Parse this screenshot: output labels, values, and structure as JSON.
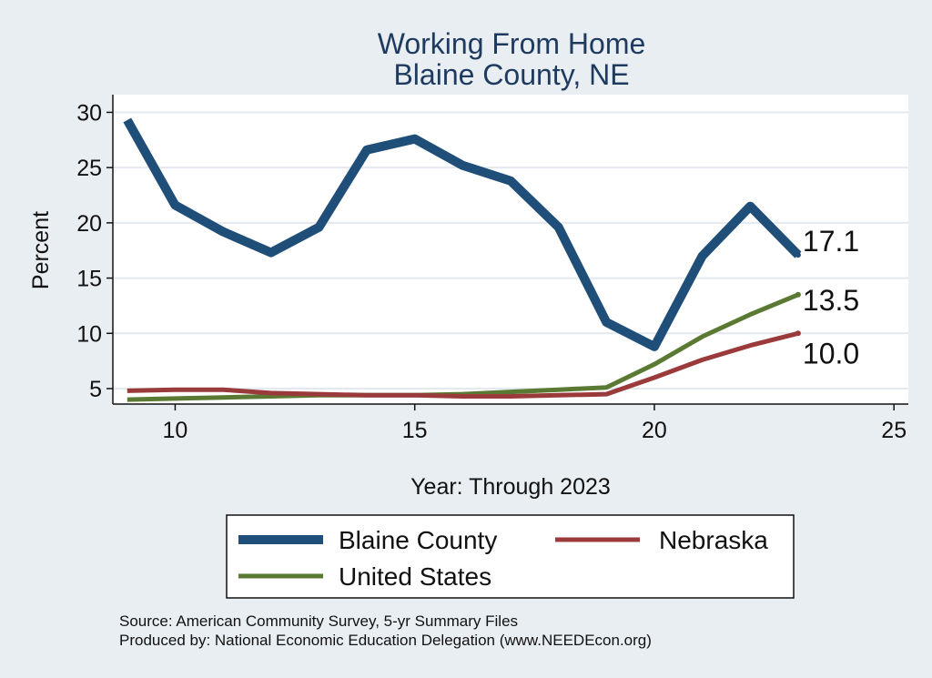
{
  "chart_data": {
    "type": "line",
    "title": [
      "Working From Home",
      "Blaine County, NE"
    ],
    "xlabel": "Year: Through 2023",
    "ylabel": "Percent",
    "xlim": [
      8.7,
      25.3
    ],
    "ylim": [
      3.6,
      31.6
    ],
    "xticks": [
      10,
      15,
      20,
      25
    ],
    "yticks": [
      5,
      10,
      15,
      20,
      25,
      30
    ],
    "grid": true,
    "legend_position": "bottom",
    "x": [
      9,
      10,
      11,
      12,
      13,
      14,
      15,
      16,
      17,
      18,
      19,
      20,
      21,
      22,
      23
    ],
    "series": [
      {
        "name": "Blaine County",
        "color": "#1f4e79",
        "values": [
          29.3,
          21.6,
          19.2,
          17.3,
          19.6,
          26.6,
          27.6,
          25.2,
          23.8,
          19.6,
          11.0,
          8.8,
          17.0,
          21.5,
          17.1
        ],
        "end_label": "17.1"
      },
      {
        "name": "Nebraska",
        "color": "#9b3a3a",
        "values": [
          4.8,
          4.9,
          4.9,
          4.6,
          4.5,
          4.4,
          4.4,
          4.3,
          4.3,
          4.4,
          4.5,
          6.0,
          7.6,
          8.9,
          10.0
        ],
        "end_label": "10.0"
      },
      {
        "name": "United States",
        "color": "#5a7a33",
        "values": [
          4.0,
          4.1,
          4.2,
          4.3,
          4.4,
          4.4,
          4.4,
          4.5,
          4.7,
          4.9,
          5.1,
          7.2,
          9.7,
          11.7,
          13.5
        ],
        "end_label": "13.5"
      }
    ],
    "notes": [
      "Source: American Community Survey, 5-yr Summary Files",
      "Produced by: National Economic Education Delegation (www.NEEDEcon.org)"
    ]
  }
}
